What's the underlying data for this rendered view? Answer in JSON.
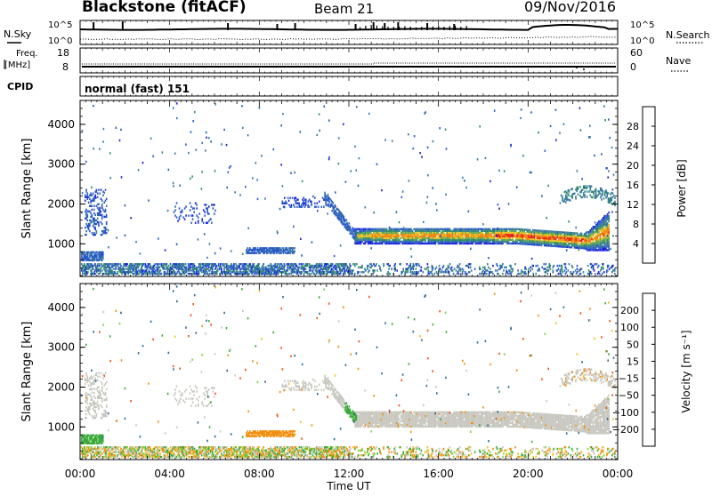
{
  "header": {
    "station": "Blackstone (fitACF)",
    "beam": "Beam 21",
    "date": "09/Nov/2016"
  },
  "noise_panel": {
    "left_label": "N.Sky",
    "right_label": "N.Search",
    "left_ticks": [
      "10^5",
      "10^0"
    ],
    "right_ticks": [
      "10^5",
      "10^0"
    ]
  },
  "freq_panel": {
    "left_label_1": "Freq.",
    "left_label_2": "[MHz]",
    "right_label": "Nave",
    "left_ticks": [
      "18",
      "8"
    ],
    "right_ticks": [
      "60",
      "0"
    ]
  },
  "cpid_panel": {
    "label": "CPID",
    "text": "normal (fast) 151"
  },
  "power_panel": {
    "ylabel": "Slant Range [km]",
    "colorbar_label": "Power [dB]"
  },
  "velocity_panel": {
    "ylabel": "Slant Range [km]",
    "colorbar_label": "Velocity [m s⁻¹]"
  },
  "xaxis_label": "Time UT",
  "chart_data": [
    {
      "type": "heatmap",
      "title": "Power",
      "xlabel": "Time UT",
      "ylabel": "Slant Range [km]",
      "x_ticks": [
        "00:00",
        "04:00",
        "08:00",
        "12:00",
        "16:00",
        "20:00",
        "00:00"
      ],
      "y_ticks": [
        1000,
        2000,
        3000,
        4000
      ],
      "ylim": [
        180,
        4600
      ],
      "colorbar": {
        "label": "Power [dB]",
        "ticks": [
          4,
          8,
          12,
          16,
          20,
          24,
          28
        ],
        "range": [
          0,
          32
        ],
        "colors": [
          "#1a22e0",
          "#2a5ac8",
          "#3a7aa0",
          "#2e8a6a",
          "#68a850",
          "#e8c020",
          "#f08010",
          "#e82010"
        ]
      },
      "features": [
        {
          "time_h": [
            12.2,
            23.6
          ],
          "range_km": [
            1000,
            1400
          ],
          "power_db": 24
        },
        {
          "time_h": [
            0.3,
            1.2
          ],
          "range_km": [
            1200,
            2300
          ],
          "power_db": 6
        },
        {
          "time_h": [
            0.0,
            1.0
          ],
          "range_km": [
            600,
            750
          ],
          "power_db": 6
        },
        {
          "time_h": [
            7.5,
            9.5
          ],
          "range_km": [
            750,
            850
          ],
          "power_db": 6
        },
        {
          "time_h": [
            10.8,
            12.2
          ],
          "range_km": [
            1200,
            2200
          ],
          "power_db": 5
        },
        {
          "time_h": [
            21.5,
            23.8
          ],
          "range_km": [
            1800,
            2500
          ],
          "power_db": 12
        }
      ]
    },
    {
      "type": "heatmap",
      "title": "Velocity",
      "xlabel": "Time UT",
      "ylabel": "Slant Range [km]",
      "x_ticks": [
        "00:00",
        "04:00",
        "08:00",
        "12:00",
        "16:00",
        "20:00",
        "00:00"
      ],
      "y_ticks": [
        1000,
        2000,
        3000,
        4000
      ],
      "ylim": [
        180,
        4600
      ],
      "colorbar": {
        "label": "Velocity [m s⁻¹]",
        "ticks": [
          200,
          100,
          50,
          15,
          -15,
          -50,
          -100,
          -200
        ],
        "colors": [
          "#1a36d8",
          "#2e6a90",
          "#3aaa3a",
          "#80d040",
          "#c8c8c0",
          "#f0c020",
          "#f09010",
          "#f05010",
          "#e01010"
        ]
      },
      "features": [
        {
          "time_h": [
            12.2,
            23.6
          ],
          "range_km": [
            1000,
            1500
          ],
          "velocity_ms": 0
        },
        {
          "time_h": [
            0.0,
            1.0
          ],
          "range_km": [
            600,
            750
          ],
          "velocity_ms": 40
        },
        {
          "time_h": [
            7.5,
            9.5
          ],
          "range_km": [
            750,
            850
          ],
          "velocity_ms": -30
        }
      ]
    }
  ]
}
